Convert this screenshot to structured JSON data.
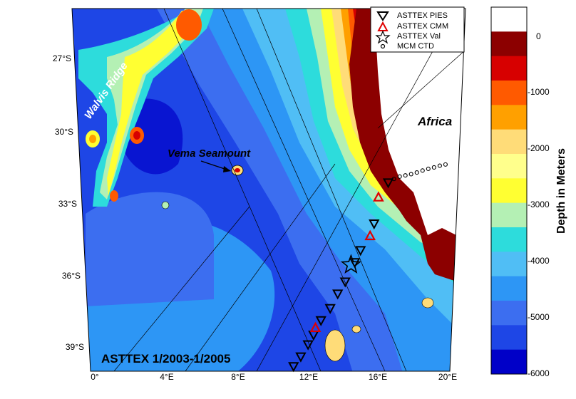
{
  "title": "ASTTEX 1/2003-1/2005",
  "colors": {
    "land": "#ffffff",
    "depth_ramp": [
      "#0000c8",
      "#1e46e6",
      "#3c6ef0",
      "#2d96f5",
      "#50bef5",
      "#2ddcdc",
      "#b4f0b4",
      "#ffff32",
      "#ffff8c",
      "#ffdc78",
      "#ffa000",
      "#ff5a00",
      "#d70000",
      "#8c0000",
      "#ffffff"
    ]
  },
  "labels": {
    "walvis": "Walvis Ridge",
    "vema": "Vema Seamount",
    "africa": "Africa"
  },
  "legend": {
    "items": [
      {
        "symbol": "inverted-triangle",
        "color": "#000000",
        "label": "ASTTEX PIES"
      },
      {
        "symbol": "triangle",
        "color": "#e00000",
        "label": "ASTTEX CMM"
      },
      {
        "symbol": "star",
        "color": "#000000",
        "label": "ASTTEX Val"
      },
      {
        "symbol": "circle",
        "color": "#000000",
        "label": "MCM CTD"
      }
    ]
  },
  "axes": {
    "lon_ticks": [
      "0°",
      "4°E",
      "8°E",
      "12°E",
      "16°E",
      "20°E"
    ],
    "lat_ticks": [
      "27°S",
      "30°S",
      "33°S",
      "36°S",
      "39°S"
    ]
  },
  "colorbar": {
    "label": "Depth in Meters",
    "ticks": [
      "0",
      "-1000",
      "-2000",
      "-3000",
      "-4000",
      "-5000",
      "-6000"
    ],
    "colors": [
      "#ffffff",
      "#8c0000",
      "#d70000",
      "#ff5a00",
      "#ffa000",
      "#ffdc78",
      "#ffff8c",
      "#ffff32",
      "#b4f0b4",
      "#2ddcdc",
      "#50bef5",
      "#2d96f5",
      "#3c6ef0",
      "#1e46e6",
      "#0000c8"
    ]
  },
  "pies_sites": [
    [
      16.3,
      -32.2
    ],
    [
      15.6,
      -33.9
    ],
    [
      14.9,
      -35.0
    ],
    [
      14.6,
      -35.5
    ],
    [
      14.1,
      -36.3
    ],
    [
      13.7,
      -36.8
    ],
    [
      13.3,
      -37.4
    ],
    [
      12.8,
      -37.9
    ],
    [
      12.4,
      -38.5
    ],
    [
      12.1,
      -38.9
    ],
    [
      11.7,
      -39.4
    ],
    [
      11.3,
      -39.8
    ]
  ],
  "cmm_sites": [
    [
      15.8,
      -32.8
    ],
    [
      15.4,
      -34.4
    ],
    [
      12.5,
      -38.2
    ]
  ],
  "val_sites": [
    [
      14.4,
      -35.6
    ]
  ],
  "ctd_sites": [
    [
      16.6,
      -32.05
    ],
    [
      16.9,
      -31.95
    ],
    [
      17.2,
      -31.9
    ],
    [
      17.5,
      -31.85
    ],
    [
      17.8,
      -31.78
    ],
    [
      18.1,
      -31.7
    ],
    [
      18.4,
      -31.63
    ],
    [
      18.7,
      -31.57
    ],
    [
      19.0,
      -31.5
    ],
    [
      19.3,
      -31.45
    ]
  ]
}
